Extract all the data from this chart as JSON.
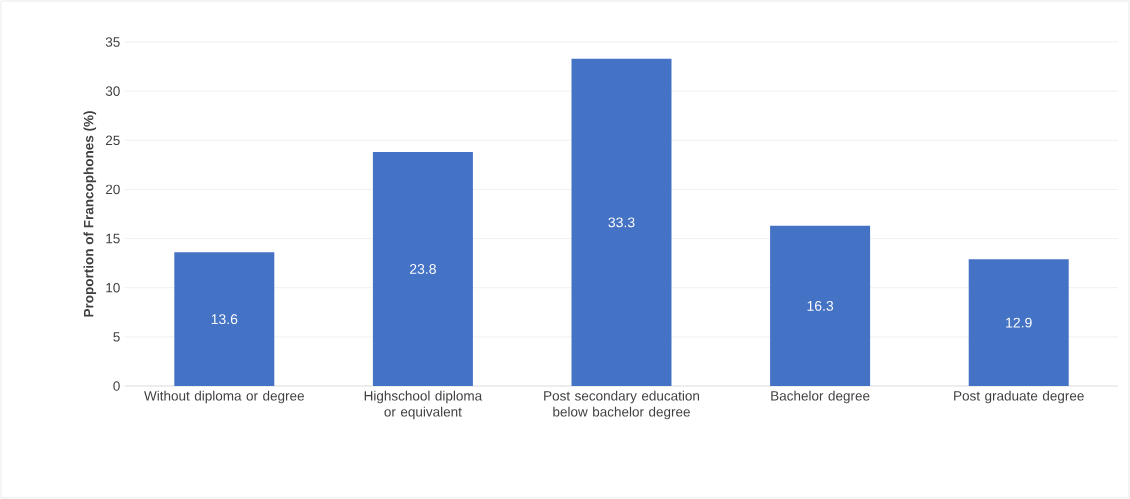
{
  "chart_data": {
    "type": "bar",
    "ylabel": "Proportion of Francophones (%)",
    "categories": [
      "Without diploma or degree",
      "Highschool diploma or equivalent",
      "Post secondary education below bachelor degree",
      "Bachelor degree",
      "Post graduate degree"
    ],
    "values": [
      13.6,
      23.8,
      33.3,
      16.3,
      12.9
    ],
    "color": "#4472c4",
    "ylim": [
      0,
      35
    ],
    "yticks": [
      0,
      5,
      10,
      15,
      20,
      25,
      30,
      35
    ],
    "grid": "y",
    "data_labels": true
  }
}
